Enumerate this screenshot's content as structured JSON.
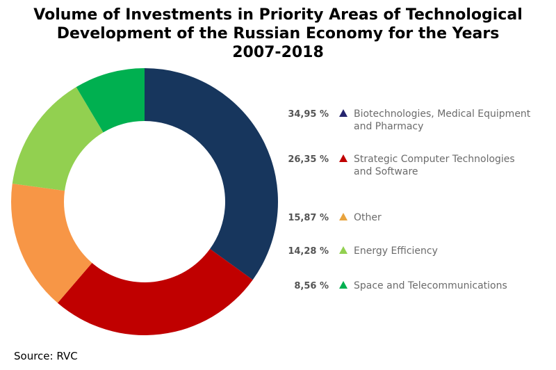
{
  "title_lines": [
    "Volume of Investments in Priority Areas of Technological",
    "Development of the Russian Economy for the Years",
    "2007-2018"
  ],
  "source": "Source: RVC",
  "chart_data": {
    "type": "pie",
    "style": "donut",
    "title": "Volume of Investments in Priority Areas of Technological Development of the Russian Economy for the Years 2007-2018",
    "legend_position": "right",
    "slices": [
      {
        "percent_label": "34,95 %",
        "value": 34.95,
        "label_lines": [
          "Biotechnologies, Medical Equipment",
          "and Pharmacy"
        ],
        "color": "#17365d",
        "marker_color": "#25256e"
      },
      {
        "percent_label": "26,35 %",
        "value": 26.35,
        "label_lines": [
          "Strategic Computer Technologies",
          "and Software"
        ],
        "color": "#c00000",
        "marker_color": "#c00000"
      },
      {
        "percent_label": "15,87 %",
        "value": 15.87,
        "label_lines": [
          "Other"
        ],
        "color": "#f79646",
        "marker_color": "#e8a33d"
      },
      {
        "percent_label": "14,28 %",
        "value": 14.28,
        "label_lines": [
          "Energy Efficiency"
        ],
        "color": "#92d050",
        "marker_color": "#92d050"
      },
      {
        "percent_label": "8,56 %",
        "value": 8.56,
        "label_lines": [
          "Space and Telecommunications"
        ],
        "color": "#00b050",
        "marker_color": "#00b050"
      }
    ]
  }
}
